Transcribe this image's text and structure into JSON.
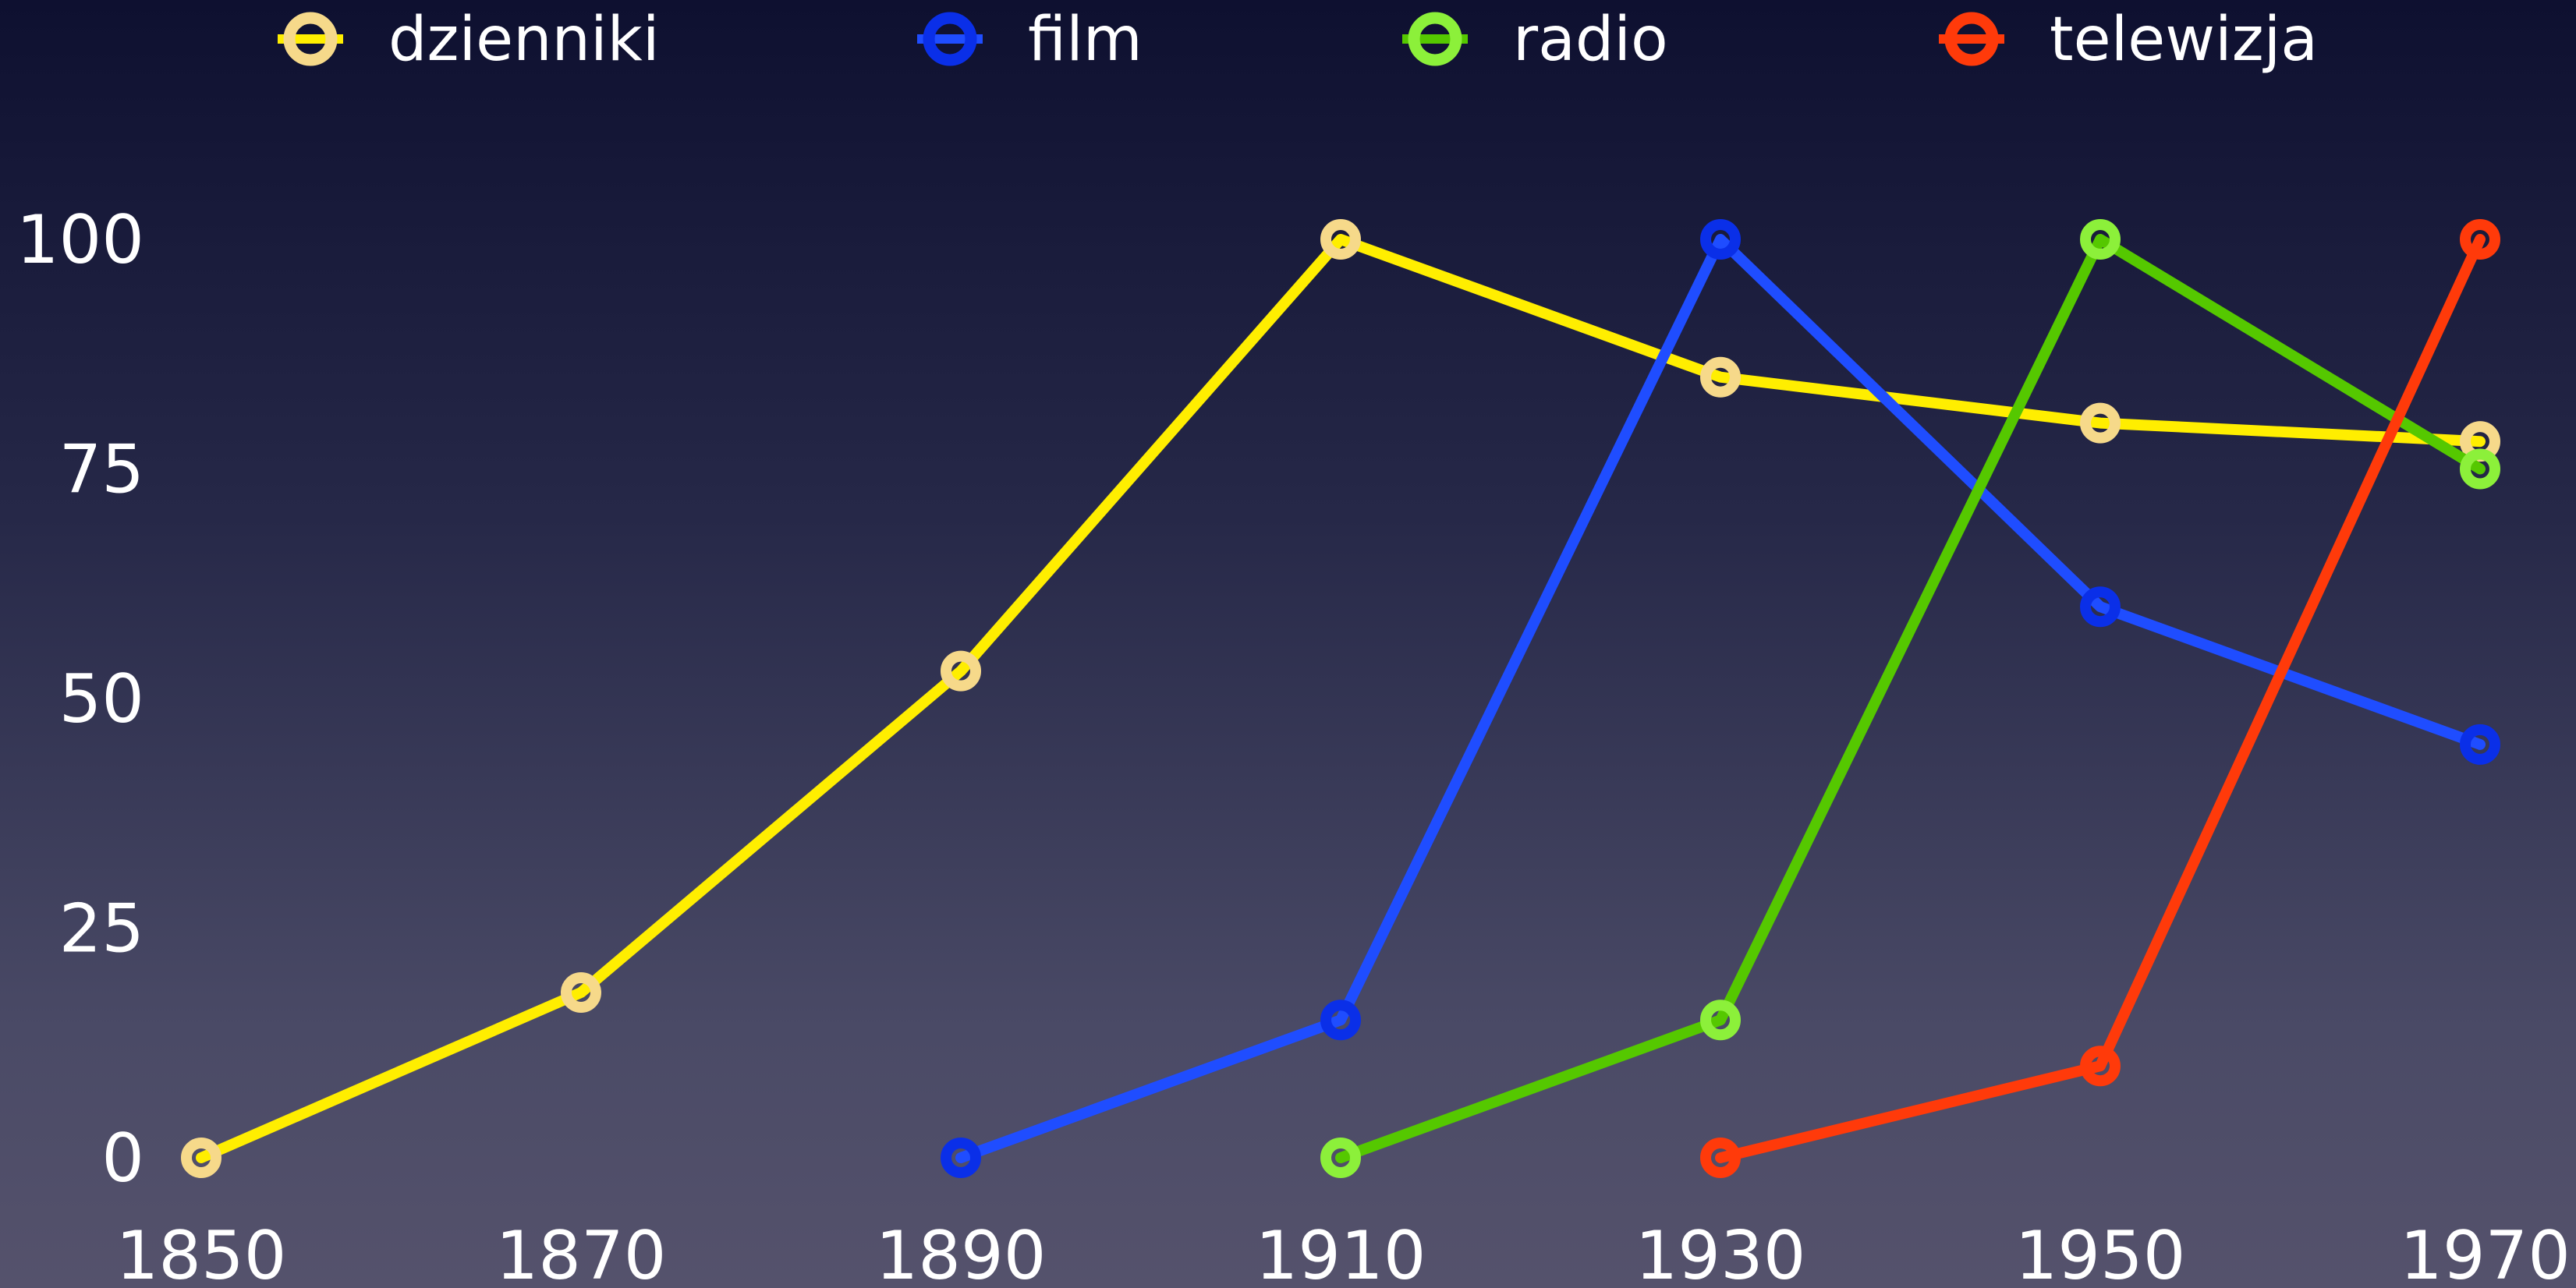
{
  "chart_data": {
    "type": "line",
    "title": "",
    "xlabel": "",
    "ylabel": "",
    "x_ticks": [
      1850,
      1870,
      1890,
      1910,
      1930,
      1950,
      1970
    ],
    "y_ticks": [
      0,
      25,
      50,
      75,
      100
    ],
    "xlim": [
      1850,
      1970
    ],
    "ylim": [
      0,
      100
    ],
    "grid": false,
    "legend_position": "top",
    "series": [
      {
        "name": "dzienniki",
        "line_color": "#ffee00",
        "marker_color": "#f6d98a",
        "points": [
          [
            1850,
            0
          ],
          [
            1870,
            18
          ],
          [
            1890,
            53
          ],
          [
            1910,
            100
          ],
          [
            1930,
            85
          ],
          [
            1950,
            80
          ],
          [
            1970,
            78
          ]
        ]
      },
      {
        "name": "film",
        "line_color": "#1f4dff",
        "marker_color": "#0a2fe8",
        "points": [
          [
            1890,
            0
          ],
          [
            1910,
            15
          ],
          [
            1930,
            100
          ],
          [
            1950,
            60
          ],
          [
            1970,
            45
          ]
        ]
      },
      {
        "name": "radio",
        "line_color": "#55c800",
        "marker_color": "#8cf03a",
        "points": [
          [
            1910,
            0
          ],
          [
            1930,
            15
          ],
          [
            1950,
            100
          ],
          [
            1970,
            75
          ]
        ]
      },
      {
        "name": "telewizja",
        "line_color": "#ff3a0a",
        "marker_color": "#ff3a0a",
        "points": [
          [
            1930,
            0
          ],
          [
            1950,
            10
          ],
          [
            1970,
            100
          ]
        ]
      }
    ]
  }
}
